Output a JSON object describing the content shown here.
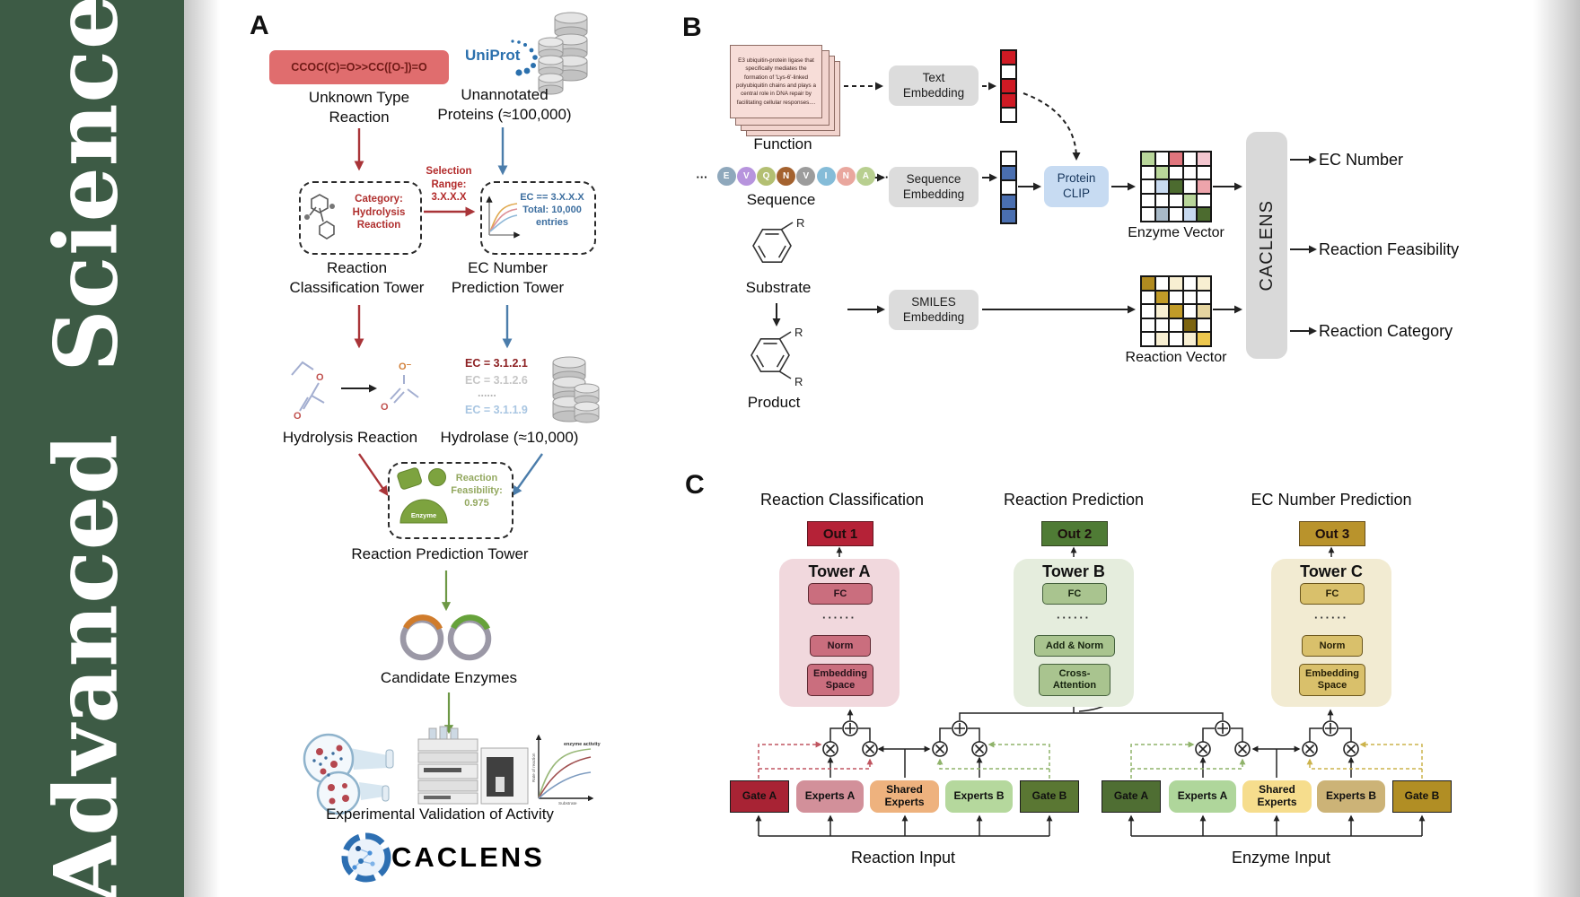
{
  "palette": {
    "wh": "#ffffff",
    "rd": "#cf1a24",
    "bl": "#4a6fb0",
    "lg": "#b9d69a",
    "dg": "#4c6b2f",
    "sa": "#e0757d",
    "pk": "#f3c6cf",
    "mp": "#eda4ab",
    "lb": "#c8daf0",
    "gb": "#a9bac8",
    "dgo": "#b08a20",
    "go": "#c19b28",
    "cr": "#f8efd2",
    "tn": "#e6d5a0",
    "ol": "#7c6410",
    "yl": "#edc74e"
  },
  "brand": {
    "title": "Advanced Science",
    "background": "#3d5b45"
  },
  "panelA": {
    "label": "A",
    "smiles": "CCOC(C)=O>>CC([O-])=O",
    "unknown_type": "Unknown Type\nReaction",
    "uniprot": "UniProt",
    "unannotated": "Unannotated\nProteins (≈100,000)",
    "selection_range": "Selection\nRange:\n3.X.X.X",
    "category": "Category:\nHydrolysis\nReaction",
    "ec_filter": "EC == 3.X.X.X\nTotal: 10,000\nentries",
    "tower_classification": "Reaction\nClassification Tower",
    "tower_ec": "EC Number\nPrediction Tower",
    "hydrolysis_reaction": "Hydrolysis Reaction",
    "ec_list": [
      "EC = 3.1.2.1",
      "EC = 3.1.2.6",
      "......",
      "EC = 3.1.1.9"
    ],
    "hydrolase": "Hydrolase (≈10,000)",
    "enzyme_badge": "Enzyme",
    "feasibility": "Reaction\nFeasibility:\n0.975",
    "tower_prediction": "Reaction Prediction Tower",
    "candidate_enzymes": "Candidate Enzymes",
    "validation": "Experimental Validation of Activity",
    "logo_text": "CACLENS",
    "atom_o": "O",
    "atom_o_minus": "O⁻",
    "graph": {
      "ylabel": "Rate of reaction",
      "xlabel": "Substrate",
      "annotation": "enzyme activity"
    }
  },
  "panelB": {
    "label": "B",
    "function_text": "E3 ubiquitin-protein ligase that specifically mediates the formation of 'Lys-6'-linked polyubiquitin chains and plays a central role in DNA repair by facilitating cellular responses....",
    "function_label": "Function",
    "ellipsis": "···",
    "residues": [
      {
        "ch": "E",
        "color": "#8fa8bc"
      },
      {
        "ch": "V",
        "color": "#b794dd"
      },
      {
        "ch": "Q",
        "color": "#b3bf72"
      },
      {
        "ch": "N",
        "color": "#a4622f"
      },
      {
        "ch": "V",
        "color": "#9c9c9c"
      },
      {
        "ch": "I",
        "color": "#85bcd8"
      },
      {
        "ch": "N",
        "color": "#e9a79e"
      },
      {
        "ch": "A",
        "color": "#b8cf90"
      }
    ],
    "sequence_label": "Sequence",
    "substrate_label": "Substrate",
    "product_label": "Product",
    "r_group": "R",
    "text_embedding": "Text\nEmbedding",
    "sequence_embedding": "Sequence\nEmbedding",
    "smiles_embedding": "SMILES\nEmbedding",
    "protein_clip": "Protein\nCLIP",
    "enzyme_vector_label": "Enzyme Vector",
    "reaction_vector_label": "Reaction Vector",
    "caclens": "CACLENS",
    "outputs": [
      "EC Number",
      "Reaction Feasibility",
      "Reaction Category"
    ],
    "text_vector": [
      "rd",
      "wh",
      "rd",
      "rd",
      "wh"
    ],
    "seq_vector": [
      "wh",
      "bl",
      "wh",
      "bl",
      "bl"
    ],
    "enzyme_vector": [
      "lg",
      "wh",
      "sa",
      "wh",
      "pk",
      "wh",
      "lg",
      "wh",
      "wh",
      "wh",
      "wh",
      "lb",
      "dg",
      "wh",
      "mp",
      "wh",
      "wh",
      "wh",
      "lg",
      "wh",
      "wh",
      "gb",
      "wh",
      "lb",
      "dg"
    ],
    "reaction_vector": [
      "dgo",
      "wh",
      "cr",
      "wh",
      "cr",
      "wh",
      "go",
      "wh",
      "wh",
      "wh",
      "wh",
      "cr",
      "go",
      "wh",
      "tn",
      "wh",
      "wh",
      "wh",
      "ol",
      "wh",
      "wh",
      "cr",
      "wh",
      "cr",
      "yl"
    ]
  },
  "panelC": {
    "label": "C",
    "headers": [
      "Reaction Classification",
      "Reaction Prediction",
      "EC Number Prediction"
    ],
    "outs": [
      "Out 1",
      "Out 2",
      "Out 3"
    ],
    "towers": [
      {
        "name": "Tower A",
        "top": "FC",
        "dots": "······",
        "mid": "Norm",
        "bottom": "Embedding\nSpace"
      },
      {
        "name": "Tower B",
        "top": "FC",
        "dots": "······",
        "mid": "Add & Norm",
        "bottom": "Cross-\nAttention"
      },
      {
        "name": "Tower C",
        "top": "FC",
        "dots": "······",
        "mid": "Norm",
        "bottom": "Embedding\nSpace"
      }
    ],
    "moe": [
      {
        "gate_a": "Gate A",
        "experts_a": "Experts A",
        "shared": "Shared\nExperts",
        "experts_b": "Experts B",
        "gate_b": "Gate B",
        "input": "Reaction Input"
      },
      {
        "gate_a": "Gate A",
        "experts_a": "Experts A",
        "shared": "Shared\nExperts",
        "experts_b": "Experts B",
        "gate_b": "Gate B",
        "input": "Enzyme Input"
      }
    ]
  }
}
